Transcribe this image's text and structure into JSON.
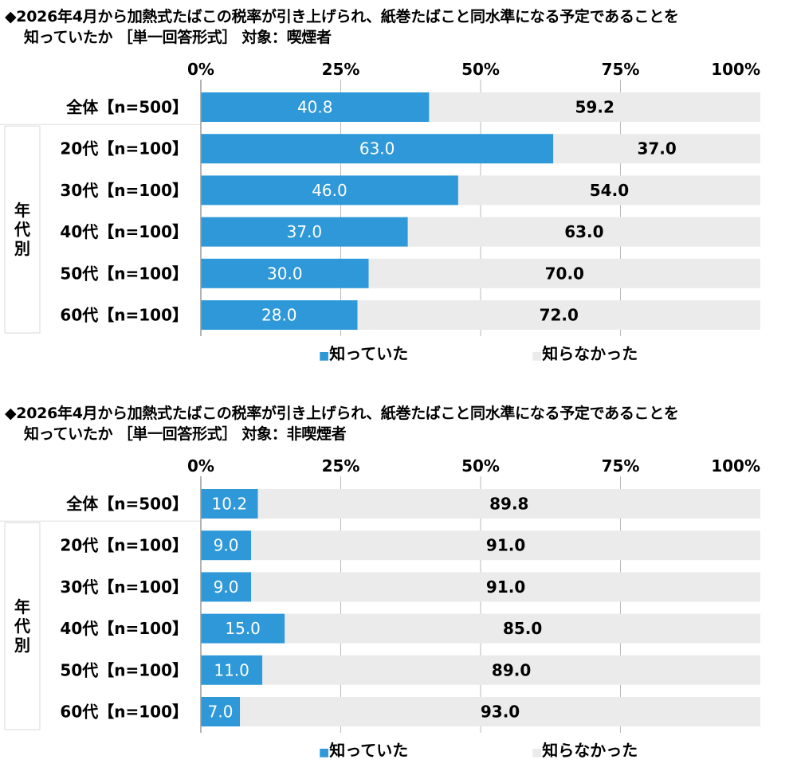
{
  "chart_data": [
    {
      "type": "bar",
      "stacked": true,
      "orientation": "horizontal",
      "title_line1": "◆2026年4月から加熱式たばこの税率が引き上げられ、紙巻たばこと同水準になる予定であることを",
      "title_line2": "知っていたか ［単一回答形式］ 対象：喫煙者",
      "x_ticks": [
        "0%",
        "25%",
        "50%",
        "75%",
        "100%"
      ],
      "xlim": [
        0,
        100
      ],
      "group_label": "年代別",
      "categories": [
        "全体【n=500】",
        "20代【n=100】",
        "30代【n=100】",
        "40代【n=100】",
        "50代【n=100】",
        "60代【n=100】"
      ],
      "series": [
        {
          "name": "知っていた",
          "values": [
            40.8,
            63.0,
            46.0,
            37.0,
            30.0,
            28.0
          ],
          "labels": [
            "40.8",
            "63.0",
            "46.0",
            "37.0",
            "30.0",
            "28.0"
          ],
          "color": "#2e98d8"
        },
        {
          "name": "知らなかった",
          "values": [
            59.2,
            37.0,
            54.0,
            63.0,
            70.0,
            72.0
          ],
          "labels": [
            "59.2",
            "37.0",
            "54.0",
            "63.0",
            "70.0",
            "72.0"
          ],
          "color": "#ebebeb"
        }
      ],
      "legend": [
        "■知っていた",
        "■知らなかった"
      ],
      "legend_position": "bottom"
    },
    {
      "type": "bar",
      "stacked": true,
      "orientation": "horizontal",
      "title_line1": "◆2026年4月から加熱式たばこの税率が引き上げられ、紙巻たばこと同水準になる予定であることを",
      "title_line2": "知っていたか ［単一回答形式］ 対象：非喫煙者",
      "x_ticks": [
        "0%",
        "25%",
        "50%",
        "75%",
        "100%"
      ],
      "xlim": [
        0,
        100
      ],
      "group_label": "年代別",
      "categories": [
        "全体【n=500】",
        "20代【n=100】",
        "30代【n=100】",
        "40代【n=100】",
        "50代【n=100】",
        "60代【n=100】"
      ],
      "series": [
        {
          "name": "知っていた",
          "values": [
            10.2,
            9.0,
            9.0,
            15.0,
            11.0,
            7.0
          ],
          "labels": [
            "10.2",
            "9.0",
            "9.0",
            "15.0",
            "11.0",
            "7.0"
          ],
          "color": "#2e98d8"
        },
        {
          "name": "知らなかった",
          "values": [
            89.8,
            91.0,
            91.0,
            85.0,
            89.0,
            93.0
          ],
          "labels": [
            "89.8",
            "91.0",
            "91.0",
            "85.0",
            "89.0",
            "93.0"
          ],
          "color": "#ebebeb"
        }
      ],
      "legend": [
        "■知っていた",
        "■知らなかった"
      ],
      "legend_position": "bottom"
    }
  ]
}
